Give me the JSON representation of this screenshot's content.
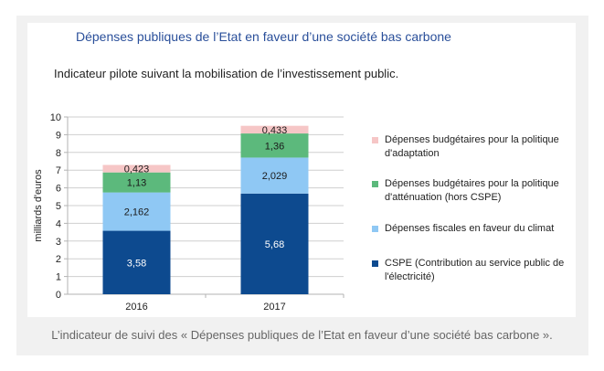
{
  "title": "Dépenses publiques de l’Etat en faveur d’une société bas carbone",
  "subtitle": "Indicateur pilote suivant la mobilisation de l’investissement public.",
  "caption": "L’indicateur de suivi des « Dépenses publiques de l’Etat en faveur d’une société bas carbone ».",
  "chart_data": {
    "type": "bar",
    "stacked": true,
    "categories": [
      "2016",
      "2017"
    ],
    "ylabel": "milliards d'euros",
    "ylim": [
      0,
      10
    ],
    "yticks": [
      0,
      1,
      2,
      3,
      4,
      5,
      6,
      7,
      8,
      9,
      10
    ],
    "grid": true,
    "legend_position": "right",
    "series": [
      {
        "name": "CSPE (Contribution au service public de l'électricité)",
        "color": "#0d4a8f",
        "values": [
          3.58,
          5.68
        ],
        "labels": [
          "3,58",
          "5,68"
        ]
      },
      {
        "name": "Dépenses fiscales en faveur du climat",
        "color": "#8fc8f4",
        "values": [
          2.162,
          2.029
        ],
        "labels": [
          "2,162",
          "2,029"
        ]
      },
      {
        "name": "Dépenses budgétaires pour la politique d'atténuation (hors CSPE)",
        "color": "#5cb97c",
        "values": [
          1.13,
          1.36
        ],
        "labels": [
          "1,13",
          "1,36"
        ]
      },
      {
        "name": "Dépenses budgétaires pour la politique d'adaptation",
        "color": "#f6c6c6",
        "values": [
          0.423,
          0.433
        ],
        "labels": [
          "0,423",
          "0,433"
        ]
      }
    ]
  },
  "legend": [
    {
      "label": "Dépenses budgétaires pour la politique d'adaptation",
      "color": "#f6c6c6"
    },
    {
      "label": "Dépenses budgétaires pour la politique d'atténuation (hors CSPE)",
      "color": "#5cb97c"
    },
    {
      "label": "Dépenses fiscales en faveur du climat",
      "color": "#8fc8f4"
    },
    {
      "label": "CSPE (Contribution au service public de l'électricité)",
      "color": "#0d4a8f"
    }
  ]
}
